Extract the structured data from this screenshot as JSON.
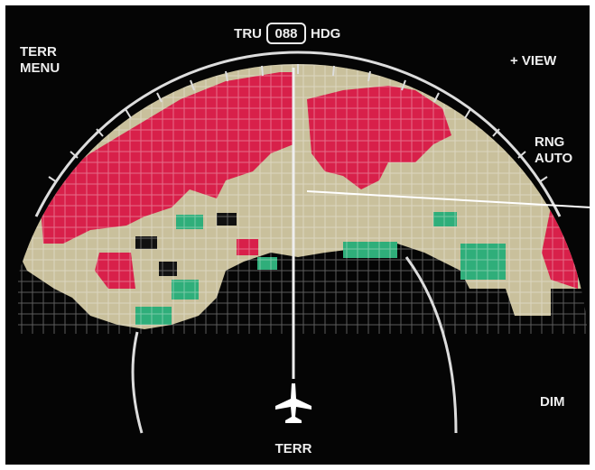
{
  "menu": {
    "line1": "TERR",
    "line2": "MENU"
  },
  "heading": {
    "left": "TRU",
    "value": "088",
    "right": "HDG"
  },
  "view": "+ VIEW",
  "range": {
    "line1": "RNG",
    "line2": "AUTO"
  },
  "dim": "DIM",
  "mode": "TERR"
}
